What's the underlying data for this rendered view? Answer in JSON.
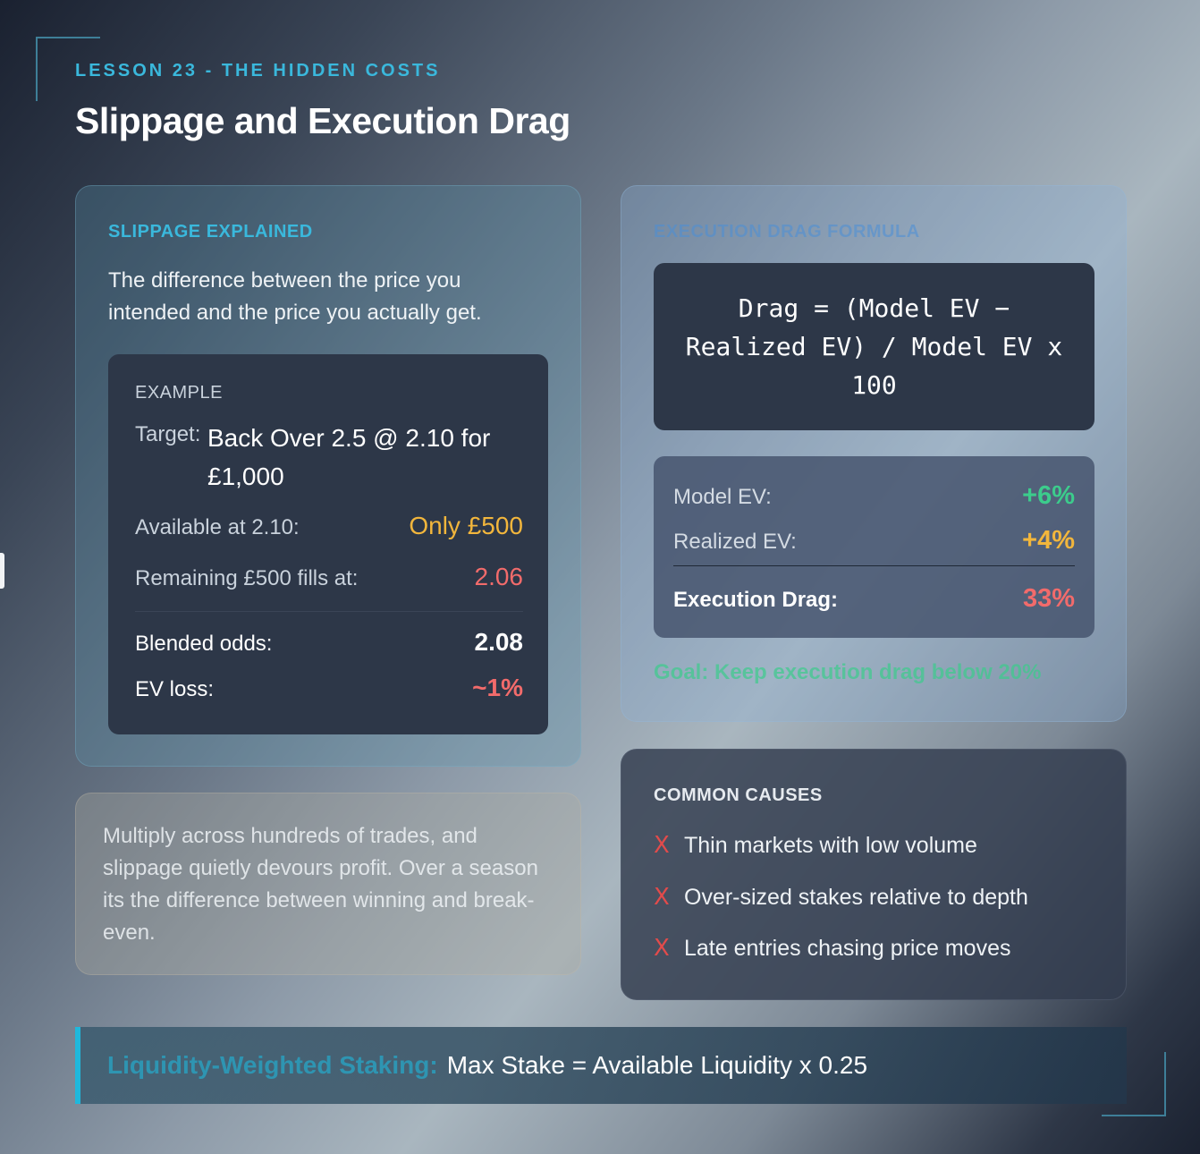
{
  "header": {
    "kicker": "LESSON 23 - THE HIDDEN COSTS",
    "title": "Slippage and Execution Drag"
  },
  "slippage": {
    "heading": "SLIPPAGE EXPLAINED",
    "description": "The difference between the price you intended and the price you actually get.",
    "example": {
      "label": "EXAMPLE",
      "target_label": "Target:",
      "target_value": "Back Over 2.5 @ 2.10 for £1,000",
      "rows": [
        {
          "label": "Available at 2.10:",
          "value": "Only £500"
        },
        {
          "label": "Remaining £500 fills at:",
          "value": "2.06"
        },
        {
          "label": "Blended odds:",
          "value": "2.08"
        },
        {
          "label": "EV loss:",
          "value": "~1%"
        }
      ]
    }
  },
  "formula": {
    "heading": "EXECUTION DRAG FORMULA",
    "expression": "Drag = (Model EV − Realized EV) / Model EV x 100",
    "rows": [
      {
        "label": "Model EV:",
        "value": "+6%"
      },
      {
        "label": "Realized EV:",
        "value": "+4%"
      },
      {
        "label": "Execution Drag:",
        "value": "33%"
      }
    ],
    "goal": "Goal: Keep execution drag below 20%"
  },
  "multiply": {
    "text": "Multiply across hundreds of trades, and slippage quietly devours profit. Over a season its the difference between winning and break-even."
  },
  "causes": {
    "heading": "COMMON CAUSES",
    "marker": "X",
    "items": [
      "Thin markets with low volume",
      "Over-sized stakes relative to depth",
      "Late entries chasing price moves"
    ]
  },
  "footer": {
    "label": "Liquidity-Weighted Staking:",
    "text": "Max Stake = Available Liquidity x 0.25"
  },
  "colors": {
    "accent": "#3ab8dc",
    "positive": "#3ccc8c",
    "warning": "#f2b63c",
    "negative": "#f26b6b"
  }
}
